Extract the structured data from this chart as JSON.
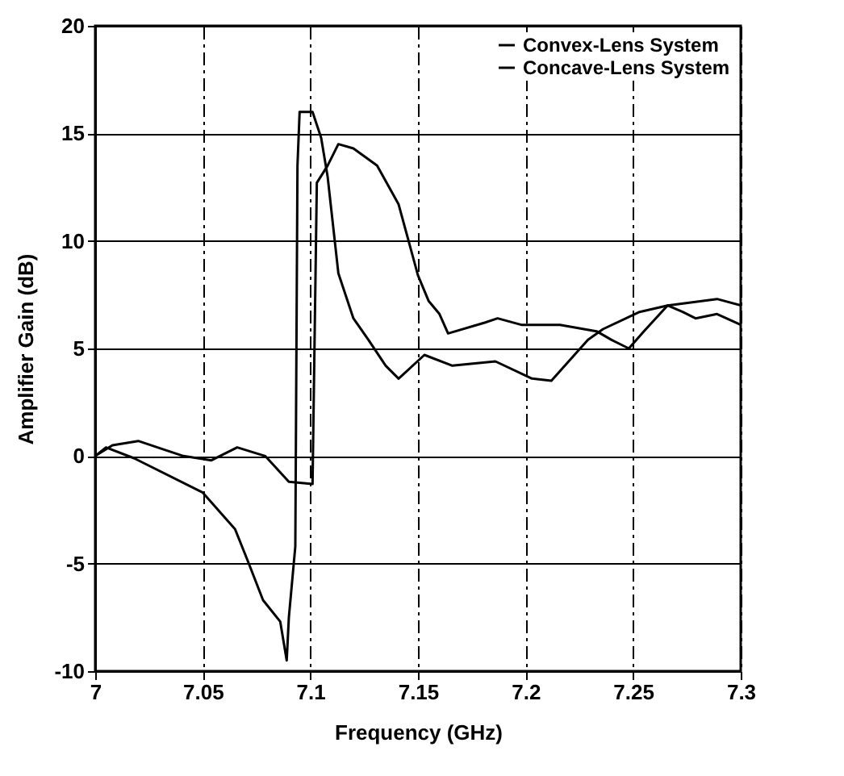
{
  "chart_data": {
    "type": "line",
    "xlabel": "Frequency (GHz)",
    "ylabel": "Amplifier Gain (dB)",
    "xlim": [
      7,
      7.3
    ],
    "xticks": [
      7,
      7.05,
      7.1,
      7.15,
      7.2,
      7.25,
      7.3
    ],
    "ylim": [
      -10,
      20
    ],
    "yticks": [
      -10,
      -5,
      0,
      5,
      10,
      15,
      20
    ],
    "grid": true,
    "legend": "top right",
    "series": [
      {
        "name": "Convex-Lens System",
        "color": "#000000",
        "x": [
          7.0,
          7.005,
          7.018,
          7.05,
          7.065,
          7.071,
          7.078,
          7.086,
          7.089,
          7.09,
          7.093,
          7.094,
          7.095,
          7.101,
          7.105,
          7.108,
          7.113,
          7.12,
          7.127,
          7.135,
          7.141,
          7.153,
          7.166,
          7.186,
          7.203,
          7.212,
          7.229,
          7.236,
          7.253,
          7.266,
          7.289,
          7.3
        ],
        "values": [
          0,
          0.4,
          -0.1,
          -1.7,
          -3.4,
          -4.9,
          -6.7,
          -7.7,
          -9.5,
          -7.5,
          -4.2,
          13.5,
          16,
          16,
          14.8,
          13,
          8.5,
          6.4,
          5.4,
          4.2,
          3.6,
          4.7,
          4.2,
          4.4,
          3.6,
          3.5,
          5.4,
          5.9,
          6.7,
          7,
          7.3,
          7
        ]
      },
      {
        "name": "Concave-Lens System",
        "color": "#000000",
        "x": [
          7.0,
          7.008,
          7.02,
          7.032,
          7.041,
          7.054,
          7.066,
          7.079,
          7.09,
          7.101,
          7.103,
          7.108,
          7.113,
          7.12,
          7.131,
          7.141,
          7.15,
          7.155,
          7.16,
          7.164,
          7.181,
          7.187,
          7.198,
          7.216,
          7.233,
          7.24,
          7.248,
          7.255,
          7.266,
          7.273,
          7.279,
          7.289,
          7.3
        ],
        "values": [
          0,
          0.5,
          0.7,
          0.3,
          0,
          -0.2,
          0.4,
          0,
          -1.2,
          -1.3,
          12.7,
          13.5,
          14.5,
          14.3,
          13.5,
          11.7,
          8.4,
          7.2,
          6.6,
          5.7,
          6.2,
          6.4,
          6.1,
          6.1,
          5.8,
          5.4,
          5,
          5.8,
          7,
          6.7,
          6.4,
          6.6,
          6.1
        ]
      }
    ]
  }
}
